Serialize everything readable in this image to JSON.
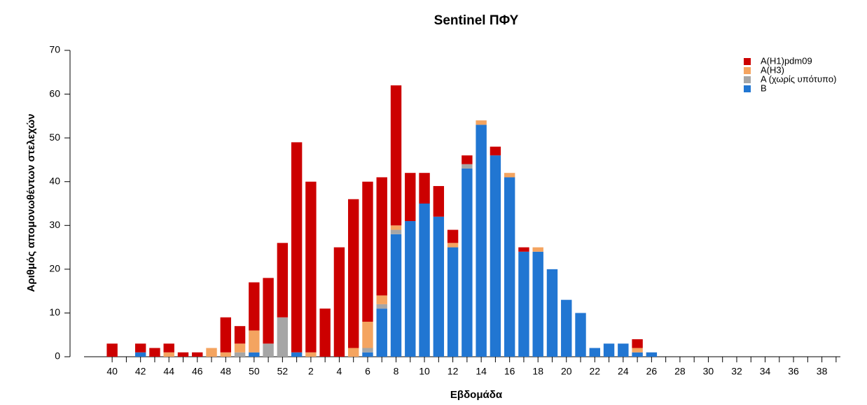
{
  "chart_data": {
    "type": "stacked_bar",
    "title": "Sentinel ΠΦΥ",
    "xlabel": "Εβδομάδα",
    "ylabel": "Αριθμός απομονωθέντων στελεχών",
    "categories": [
      "40",
      null,
      "42",
      null,
      "44",
      null,
      "46",
      null,
      "48",
      null,
      "50",
      null,
      "52",
      null,
      "2",
      null,
      "4",
      null,
      "6",
      null,
      "8",
      null,
      "10",
      null,
      "12",
      null,
      "14",
      null,
      "16",
      null,
      "18",
      null,
      "20",
      null,
      "22",
      null,
      "24",
      null,
      "26",
      null,
      "28",
      null,
      "30",
      null,
      "32",
      null,
      "34",
      null,
      "36",
      null,
      "38",
      null
    ],
    "series": [
      {
        "name": "A(H1)pdm09",
        "color": "#cc0000",
        "values": [
          3,
          0,
          2,
          2,
          2,
          1,
          1,
          0,
          8,
          4,
          11,
          15,
          17,
          48,
          39,
          11,
          25,
          34,
          32,
          27,
          32,
          11,
          7,
          7,
          3,
          2,
          0,
          2,
          0,
          1,
          0,
          0,
          0,
          0,
          0,
          0,
          0,
          2,
          0,
          0,
          0,
          0,
          0,
          0,
          0,
          0,
          0,
          0,
          0,
          0,
          0,
          0
        ]
      },
      {
        "name": "A(H3)",
        "color": "#f4a460",
        "values": [
          0,
          0,
          0,
          0,
          1,
          0,
          0,
          2,
          1,
          2,
          5,
          0,
          0,
          0,
          1,
          0,
          0,
          2,
          6,
          2,
          1,
          0,
          0,
          0,
          1,
          0,
          1,
          0,
          1,
          0,
          1,
          0,
          0,
          0,
          0,
          0,
          0,
          1,
          0,
          0,
          0,
          0,
          0,
          0,
          0,
          0,
          0,
          0,
          0,
          0,
          0,
          0
        ]
      },
      {
        "name": "A (χωρίς υπότυπο)",
        "color": "#a6a6a6",
        "values": [
          0,
          0,
          0,
          0,
          0,
          0,
          0,
          0,
          0,
          1,
          0,
          3,
          9,
          0,
          0,
          0,
          0,
          0,
          1,
          1,
          1,
          0,
          0,
          0,
          0,
          1,
          0,
          0,
          0,
          0,
          0,
          0,
          0,
          0,
          0,
          0,
          0,
          0,
          0,
          0,
          0,
          0,
          0,
          0,
          0,
          0,
          0,
          0,
          0,
          0,
          0,
          0
        ]
      },
      {
        "name": "B",
        "color": "#2176d2",
        "values": [
          0,
          0,
          1,
          0,
          0,
          0,
          0,
          0,
          0,
          0,
          1,
          0,
          0,
          1,
          0,
          0,
          0,
          0,
          1,
          11,
          28,
          31,
          35,
          32,
          25,
          43,
          53,
          46,
          41,
          24,
          24,
          20,
          13,
          10,
          2,
          3,
          3,
          1,
          1,
          0,
          0,
          0,
          0,
          0,
          0,
          0,
          0,
          0,
          0,
          0,
          0,
          0
        ]
      }
    ],
    "ylim": [
      0,
      70
    ],
    "yticks": [
      0,
      10,
      20,
      30,
      40,
      50,
      60,
      70
    ],
    "legend": "top-right"
  }
}
